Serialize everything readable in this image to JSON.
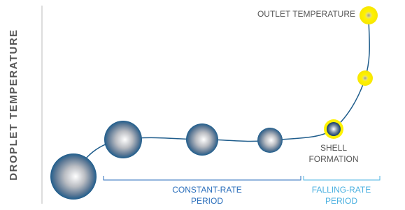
{
  "axis_label": "DROPLET TEMPERATURE",
  "outlet_label": "OUTLET TEMPERATURE",
  "shell_label": [
    "SHELL",
    "FORMATION"
  ],
  "constant_rate_label": [
    "CONSTANT-RATE",
    "PERIOD"
  ],
  "falling_rate_label": [
    "FALLING-RATE",
    "PERIOD"
  ]
}
